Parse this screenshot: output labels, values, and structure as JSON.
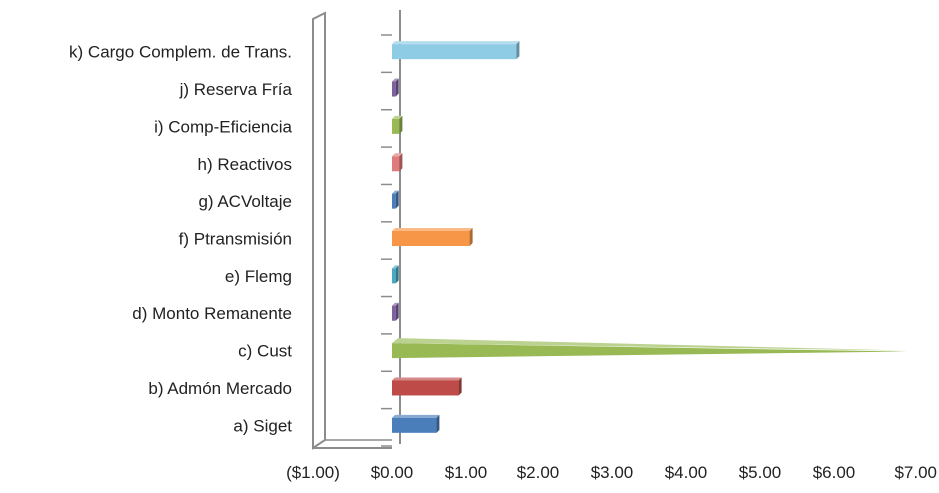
{
  "chart_data": {
    "type": "bar",
    "orientation": "horizontal",
    "style": "3d-cone",
    "categories": [
      "a) Siget",
      "b) Admón Mercado",
      "c) Cust",
      "d) Monto Remanente",
      "e) Flemg",
      "f) Ptransmisión",
      "g) ACVoltaje",
      "h) Reactivos",
      "i) Comp-Eficiencia",
      "j) Reserva Fría",
      "k) Cargo Complem. de Trans."
    ],
    "values": [
      0.6,
      0.9,
      7.0,
      0.05,
      0.05,
      1.05,
      0.05,
      0.1,
      0.1,
      0.05,
      1.7
    ],
    "colors": [
      "#4a7ebb",
      "#be4b48",
      "#98b954",
      "#7d60a0",
      "#46aac5",
      "#f79646",
      "#4a7ebb",
      "#e07b7b",
      "#98b954",
      "#7d60a0",
      "#8ecbe5"
    ],
    "xticks": [
      "($1.00)",
      "$0.00",
      "$1.00",
      "$2.00",
      "$3.00",
      "$4.00",
      "$5.00",
      "$6.00",
      "$7.00"
    ],
    "xlim": [
      -1,
      7
    ],
    "title": "",
    "xlabel": "",
    "ylabel": "",
    "grid": false,
    "legend": "none"
  }
}
